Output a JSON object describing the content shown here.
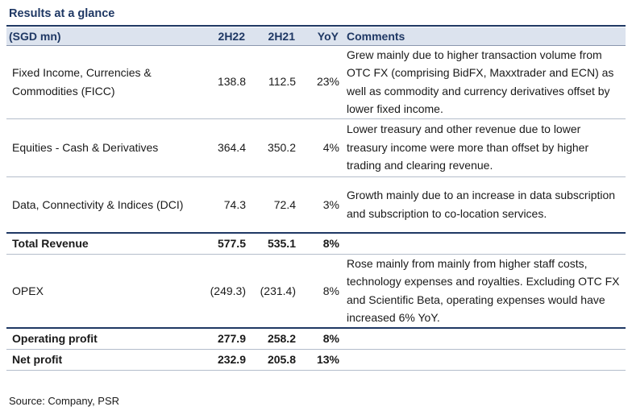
{
  "title": "Results at a glance",
  "headers": {
    "label": "(SGD mn)",
    "h1": "2H22",
    "h2": "2H21",
    "yoy": "YoY",
    "comments": "Comments"
  },
  "rows": [
    {
      "label": "Fixed Income, Currencies & Commodities (FICC)",
      "h1": "138.8",
      "h2": "112.5",
      "yoy": "23%",
      "comment": "Grew mainly due to higher transaction volume from OTC FX (comprising BidFX, Maxxtrader and ECN) as well as commodity and currency derivatives offset by lower fixed income."
    },
    {
      "label": "Equities - Cash & Derivatives",
      "h1": "364.4",
      "h2": "350.2",
      "yoy": "4%",
      "comment": "Lower treasury and other revenue due to lower treasury income were more than offset by higher trading and clearing revenue."
    },
    {
      "label": "Data, Connectivity & Indices (DCI)",
      "h1": "74.3",
      "h2": "72.4",
      "yoy": "3%",
      "comment": "Growth mainly due to an increase in data subscription and subscription to co-location services."
    },
    {
      "label": "Total Revenue",
      "h1": "577.5",
      "h2": "535.1",
      "yoy": "8%",
      "comment": ""
    },
    {
      "label": "OPEX",
      "h1": "(249.3)",
      "h2": "(231.4)",
      "yoy": "8%",
      "comment": "Rose mainly from mainly from higher staff costs, technology expenses and royalties. Excluding OTC FX and Scientific Beta, operating expenses would have increased 6% YoY."
    },
    {
      "label": "Operating profit",
      "h1": "277.9",
      "h2": "258.2",
      "yoy": "8%",
      "comment": ""
    },
    {
      "label": "Net profit",
      "h1": "232.9",
      "h2": "205.8",
      "yoy": "13%",
      "comment": ""
    }
  ],
  "source": "Source: Company, PSR",
  "colors": {
    "header_bg": "#dce3ee",
    "accent": "#1f3864"
  }
}
